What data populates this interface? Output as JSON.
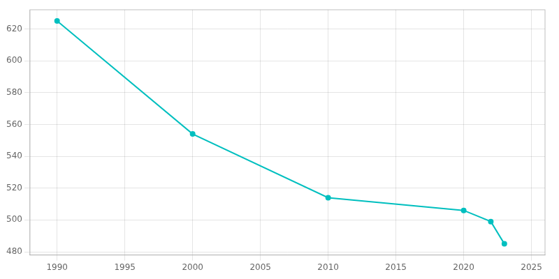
{
  "chart_data": {
    "type": "line",
    "x": [
      1990,
      2000,
      2010,
      2020,
      2022,
      2023
    ],
    "values": [
      625,
      554,
      514,
      506,
      499,
      485
    ],
    "color": "#00BFBF",
    "marker": "circle",
    "xlim": [
      1988,
      2026
    ],
    "xticks": [
      1990,
      1995,
      2000,
      2005,
      2010,
      2015,
      2020,
      2025
    ],
    "ylim": [
      478,
      632
    ],
    "yticks": [
      480,
      500,
      520,
      540,
      560,
      580,
      600,
      620
    ],
    "grid": true
  }
}
